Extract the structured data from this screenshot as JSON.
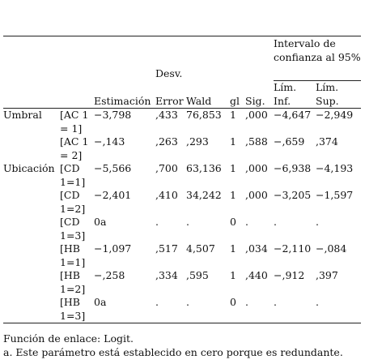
{
  "headers": {
    "ci_group": "Intervalo de confianza al 95%",
    "desv": "Desv.",
    "estimacion": "Estimación",
    "error": "Error",
    "wald": "Wald",
    "gl": "gl",
    "sig": "Sig.",
    "lim_inf": "Lím. Inf.",
    "lim_sup": "Lím. Sup."
  },
  "rows": [
    {
      "group": "Umbral",
      "param": "[AC 1 = 1]",
      "est": "−3,798",
      "err": ",433",
      "wald": "76,853",
      "gl": "1",
      "sig": ",000",
      "inf": "−4,647",
      "sup": "−2,949"
    },
    {
      "group": "",
      "param": "[AC 1 = 2]",
      "est": "−,143",
      "err": ",263",
      "wald": ",293",
      "gl": "1",
      "sig": ",588",
      "inf": "−,659",
      "sup": ",374"
    },
    {
      "group": "Ubicación",
      "param": "[CD 1=1]",
      "est": "−5,566",
      "err": ",700",
      "wald": "63,136",
      "gl": "1",
      "sig": ",000",
      "inf": "−6,938",
      "sup": "−4,193"
    },
    {
      "group": "",
      "param": "[CD 1=2]",
      "est": "−2,401",
      "err": ",410",
      "wald": "34,242",
      "gl": "1",
      "sig": ",000",
      "inf": "−3,205",
      "sup": "−1,597"
    },
    {
      "group": "",
      "param": "[CD 1=3]",
      "est": "0a",
      "err": ".",
      "wald": ".",
      "gl": "0",
      "sig": ".",
      "inf": ".",
      "sup": "."
    },
    {
      "group": "",
      "param": "[HB 1=1]",
      "est": "−1,097",
      "err": ",517",
      "wald": "4,507",
      "gl": "1",
      "sig": ",034",
      "inf": "−2,110",
      "sup": "−,084"
    },
    {
      "group": "",
      "param": "[HB 1=2]",
      "est": "−,258",
      "err": ",334",
      "wald": ",595",
      "gl": "1",
      "sig": ",440",
      "inf": "−,912",
      "sup": ",397"
    },
    {
      "group": "",
      "param": "[HB 1=3]",
      "est": "0a",
      "err": ".",
      "wald": ".",
      "gl": "0",
      "sig": ".",
      "inf": ".",
      "sup": "."
    }
  ],
  "footnotes": {
    "link": "Función de enlace: Logit.",
    "note_a": "a. Este parámetro está establecido en cero porque es redundante."
  }
}
